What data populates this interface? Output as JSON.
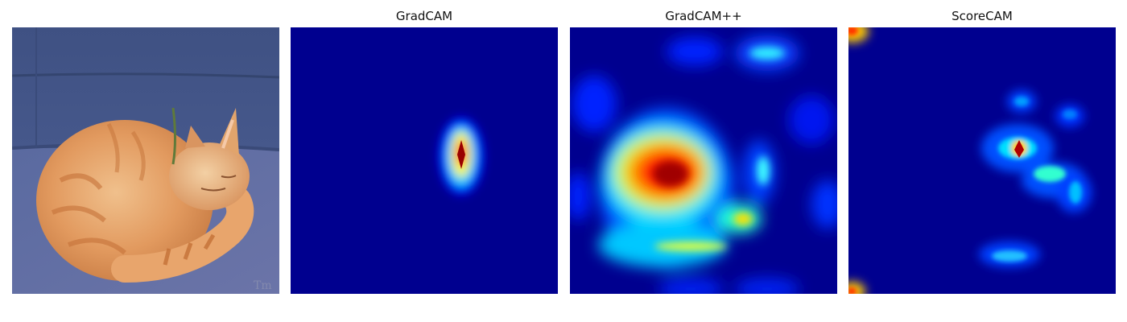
{
  "figure": {
    "panels": [
      {
        "title": "",
        "kind": "photo",
        "subject": "sleeping orange tabby cat curled on blue couch"
      },
      {
        "title": "GradCAM",
        "kind": "heatmap",
        "colormap": "jet"
      },
      {
        "title": "GradCAM++",
        "kind": "heatmap",
        "colormap": "jet"
      },
      {
        "title": "ScoreCAM",
        "kind": "heatmap",
        "colormap": "jet"
      }
    ]
  },
  "colors": {
    "background": "#ffffff",
    "jet_low": "#00007f",
    "jet_blue": "#0000ff",
    "jet_cyan": "#00ffff",
    "jet_yellow": "#ffff00",
    "jet_red": "#ff0000",
    "jet_dark_red": "#800000",
    "couch_blue": "#4d5f95",
    "cat_orange": "#e4a06a"
  }
}
